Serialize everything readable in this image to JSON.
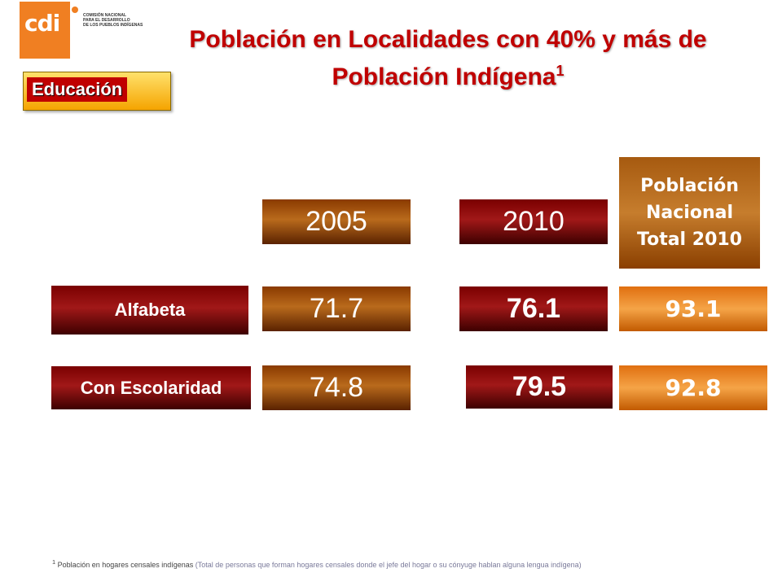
{
  "logo": {
    "mark_text": "cdi",
    "lines": [
      "COMISIÓN NACIONAL",
      "PARA EL DESARROLLO",
      "DE LOS PUEBLOS INDÍGENAS"
    ]
  },
  "title": {
    "line1": "Población en Localidades con 40% y más de",
    "line2": "Población Indígena",
    "sup": "1"
  },
  "section_label": "Educación",
  "headers": {
    "year1": "2005",
    "year2": "2010",
    "national_line1": "Población",
    "national_line2": "Nacional",
    "national_line3": "Total 2010"
  },
  "rows": [
    {
      "label": "Alfabeta",
      "v2005": "71.7",
      "v2010": "76.1",
      "national": "93.1"
    },
    {
      "label": "Con Escolaridad",
      "v2005": "74.8",
      "v2010": "79.5",
      "national": "92.8"
    }
  ],
  "footnote": {
    "sup": "1",
    "main": " Población en hogares censales indígenas ",
    "paren": "(Total de personas que forman hogares censales donde el jefe del hogar o su cónyuge hablan alguna lengua indígena)"
  }
}
